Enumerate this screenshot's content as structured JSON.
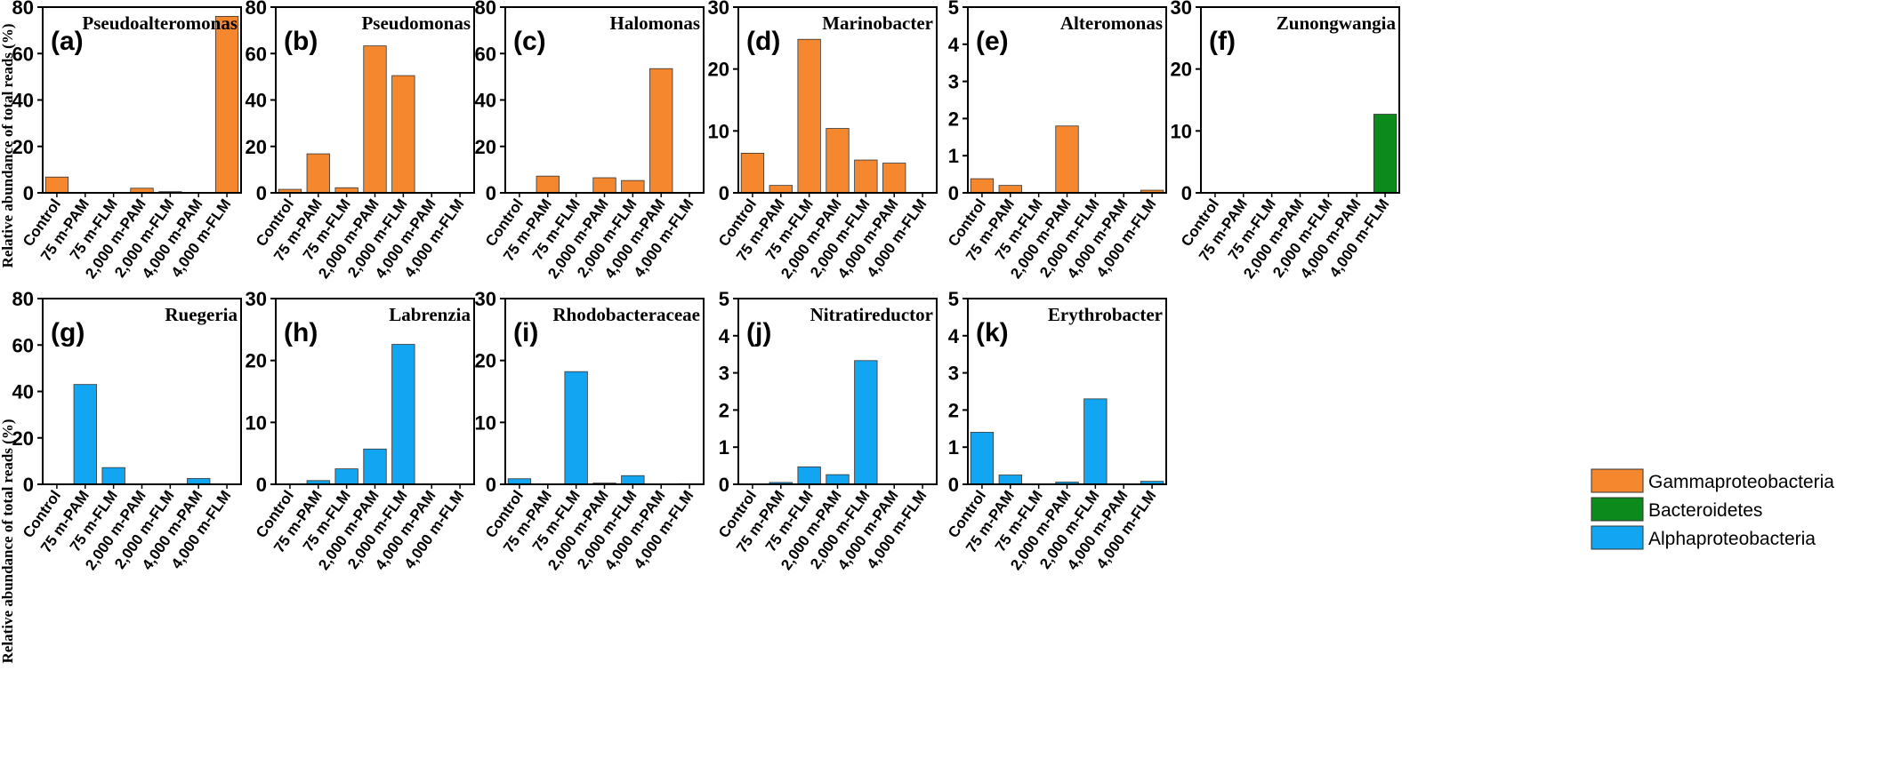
{
  "ylabel": "Relative abundance of total reads (%)",
  "colors": {
    "Gammaproteobacteria": "#F5872F",
    "Bacteroidetes": "#0C8A1C",
    "Alphaproteobacteria": "#12A6F2"
  },
  "legend": [
    "Gammaproteobacteria",
    "Bacteroidetes",
    "Alphaproteobacteria"
  ],
  "chart_data": [
    {
      "type": "bar",
      "letter": "(a)",
      "title": "Pseudoalteromonas",
      "group": "Gammaproteobacteria",
      "categories": [
        "Control",
        "75 m-PAM",
        "75 m-FLM",
        "2,000 m-PAM",
        "2,000 m-FLM",
        "4,000 m-PAM",
        "4,000 m-FLM"
      ],
      "values": [
        6.8,
        0,
        0,
        2.0,
        0.5,
        0,
        76.0
      ],
      "ylim": [
        0,
        80
      ],
      "yticks": [
        0,
        20,
        40,
        60,
        80
      ]
    },
    {
      "type": "bar",
      "letter": "(b)",
      "title": "Pseudomonas",
      "group": "Gammaproteobacteria",
      "categories": [
        "Control",
        "75 m-PAM",
        "75 m-FLM",
        "2,000 m-PAM",
        "2,000 m-FLM",
        "4,000 m-PAM",
        "4,000 m-FLM"
      ],
      "values": [
        1.5,
        16.8,
        2.2,
        63.3,
        50.5,
        0,
        0
      ],
      "ylim": [
        0,
        80
      ],
      "yticks": [
        0,
        20,
        40,
        60,
        80
      ]
    },
    {
      "type": "bar",
      "letter": "(c)",
      "title": "Halomonas",
      "group": "Gammaproteobacteria",
      "categories": [
        "Control",
        "75 m-PAM",
        "75 m-FLM",
        "2,000 m-PAM",
        "2,000 m-FLM",
        "4,000 m-PAM",
        "4,000 m-FLM"
      ],
      "values": [
        0.2,
        7.2,
        0,
        6.5,
        5.3,
        53.5,
        0
      ],
      "ylim": [
        0,
        80
      ],
      "yticks": [
        0,
        20,
        40,
        60,
        80
      ]
    },
    {
      "type": "bar",
      "letter": "(d)",
      "title": "Marinobacter",
      "group": "Gammaproteobacteria",
      "categories": [
        "Control",
        "75 m-PAM",
        "75 m-FLM",
        "2,000 m-PAM",
        "2,000 m-FLM",
        "4,000 m-PAM",
        "4,000 m-FLM"
      ],
      "values": [
        6.4,
        1.2,
        24.8,
        10.4,
        5.3,
        4.8,
        0
      ],
      "ylim": [
        0,
        30
      ],
      "yticks": [
        0,
        10,
        20,
        30
      ]
    },
    {
      "type": "bar",
      "letter": "(e)",
      "title": "Alteromonas",
      "group": "Gammaproteobacteria",
      "categories": [
        "Control",
        "75 m-PAM",
        "75 m-FLM",
        "2,000 m-PAM",
        "2,000 m-FLM",
        "4,000 m-PAM",
        "4,000 m-FLM"
      ],
      "values": [
        0.38,
        0.2,
        0,
        1.8,
        0,
        0,
        0.07
      ],
      "ylim": [
        0,
        5
      ],
      "yticks": [
        0,
        1,
        2,
        3,
        4,
        5
      ]
    },
    {
      "type": "bar",
      "letter": "(f)",
      "title": "Zunongwangia",
      "group": "Bacteroidetes",
      "categories": [
        "Control",
        "75 m-PAM",
        "75 m-FLM",
        "2,000 m-PAM",
        "2,000 m-FLM",
        "4,000 m-PAM",
        "4,000 m-FLM"
      ],
      "values": [
        0,
        0,
        0,
        0,
        0,
        0,
        12.7
      ],
      "ylim": [
        0,
        30
      ],
      "yticks": [
        0,
        10,
        20,
        30
      ]
    },
    {
      "type": "bar",
      "letter": "(g)",
      "title": "Ruegeria",
      "group": "Alphaproteobacteria",
      "categories": [
        "Control",
        "75 m-PAM",
        "75 m-FLM",
        "2,000 m-PAM",
        "2,000 m-FLM",
        "4,000 m-PAM",
        "4,000 m-FLM"
      ],
      "values": [
        0,
        43.0,
        7.2,
        0,
        0,
        2.5,
        0
      ],
      "ylim": [
        0,
        80
      ],
      "yticks": [
        0,
        20,
        40,
        60,
        80
      ]
    },
    {
      "type": "bar",
      "letter": "(h)",
      "title": "Labrenzia",
      "group": "Alphaproteobacteria",
      "categories": [
        "Control",
        "75 m-PAM",
        "75 m-FLM",
        "2,000 m-PAM",
        "2,000 m-FLM",
        "4,000 m-PAM",
        "4,000 m-FLM"
      ],
      "values": [
        0,
        0.6,
        2.5,
        5.7,
        22.6,
        0,
        0
      ],
      "ylim": [
        0,
        30
      ],
      "yticks": [
        0,
        10,
        20,
        30
      ]
    },
    {
      "type": "bar",
      "letter": "(i)",
      "title": "Rhodobacteraceae",
      "group": "Alphaproteobacteria",
      "categories": [
        "Control",
        "75 m-PAM",
        "75 m-FLM",
        "2,000 m-PAM",
        "2,000 m-FLM",
        "4,000 m-PAM",
        "4,000 m-FLM"
      ],
      "values": [
        0.9,
        0,
        18.2,
        0.2,
        1.4,
        0,
        0.1
      ],
      "ylim": [
        0,
        30
      ],
      "yticks": [
        0,
        10,
        20,
        30
      ]
    },
    {
      "type": "bar",
      "letter": "(j)",
      "title": "Nitratireductor",
      "group": "Alphaproteobacteria",
      "categories": [
        "Control",
        "75 m-PAM",
        "75 m-FLM",
        "2,000 m-PAM",
        "2,000 m-FLM",
        "4,000 m-PAM",
        "4,000 m-FLM"
      ],
      "values": [
        0,
        0.05,
        0.47,
        0.26,
        3.33,
        0,
        0
      ],
      "ylim": [
        0,
        5
      ],
      "yticks": [
        0,
        1,
        2,
        3,
        4,
        5
      ]
    },
    {
      "type": "bar",
      "letter": "(k)",
      "title": "Erythrobacter",
      "group": "Alphaproteobacteria",
      "categories": [
        "Control",
        "75 m-PAM",
        "75 m-FLM",
        "2,000 m-PAM",
        "2,000 m-FLM",
        "4,000 m-PAM",
        "4,000 m-FLM"
      ],
      "values": [
        1.4,
        0.25,
        0,
        0.06,
        2.3,
        0,
        0.08
      ],
      "ylim": [
        0,
        5
      ],
      "yticks": [
        0,
        1,
        2,
        3,
        4,
        5
      ]
    }
  ]
}
